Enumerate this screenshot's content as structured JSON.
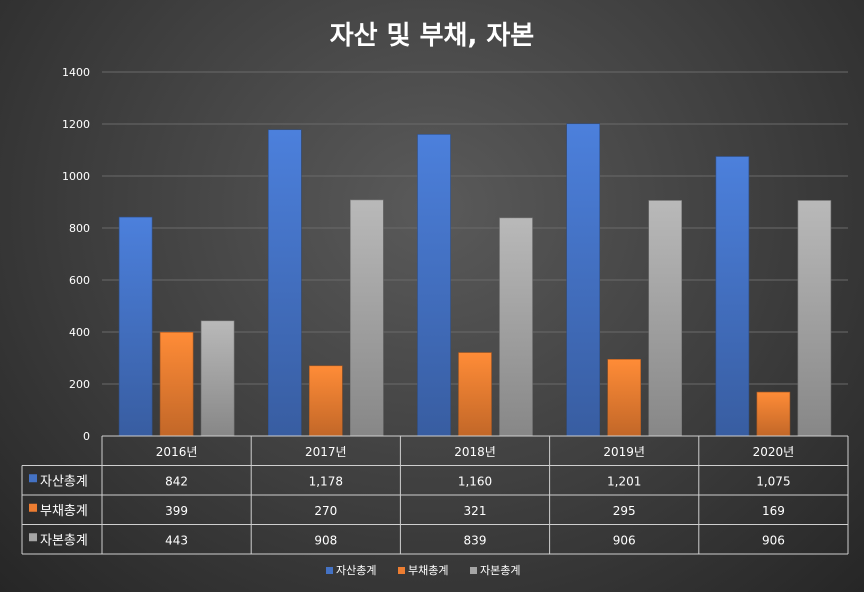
{
  "chart_data": {
    "type": "bar",
    "title": "자산 및 부채, 자본",
    "categories": [
      "2016년",
      "2017년",
      "2018년",
      "2019년",
      "2020년"
    ],
    "ylim": [
      0,
      1400
    ],
    "yticks": [
      0,
      200,
      400,
      600,
      800,
      1000,
      1200,
      1400
    ],
    "grid": true,
    "legend_position": "bottom",
    "series": [
      {
        "name": "자산총계",
        "color": "#4472c4",
        "values": [
          842,
          1178,
          1160,
          1201,
          1075
        ],
        "labels": [
          "842",
          "1,178",
          "1,160",
          "1,201",
          "1,075"
        ]
      },
      {
        "name": "부채총계",
        "color": "#ed7d31",
        "values": [
          399,
          270,
          321,
          295,
          169
        ],
        "labels": [
          "399",
          "270",
          "321",
          "295",
          "169"
        ]
      },
      {
        "name": "자본총계",
        "color": "#a5a5a5",
        "values": [
          443,
          908,
          839,
          906,
          906
        ],
        "labels": [
          "443",
          "908",
          "839",
          "906",
          "906"
        ]
      }
    ]
  }
}
